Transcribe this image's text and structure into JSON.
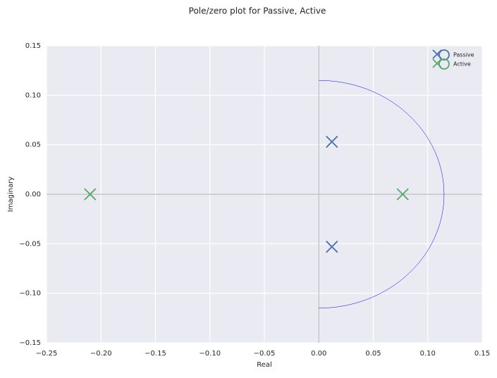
{
  "chart_data": {
    "type": "pole-zero",
    "title": "Pole/zero plot for Passive, Active",
    "x_label": "Real",
    "y_label": "Imaginary",
    "xlim": [
      -0.25,
      0.15
    ],
    "ylim": [
      -0.15,
      0.15
    ],
    "xticks": [
      {
        "value": -0.25,
        "label": "−0.25"
      },
      {
        "value": -0.2,
        "label": "−0.20"
      },
      {
        "value": -0.15,
        "label": "−0.15"
      },
      {
        "value": -0.1,
        "label": "−0.10"
      },
      {
        "value": -0.05,
        "label": "−0.05"
      },
      {
        "value": 0,
        "label": "0.00"
      },
      0.05,
      {
        "value": 0.1,
        "label": "0.10"
      },
      0.15
    ],
    "yticks": [
      {
        "value": -0.15,
        "label": "−0.15"
      },
      {
        "value": -0.1,
        "label": "−0.10"
      },
      {
        "value": -0.05,
        "label": "−0.05"
      },
      {
        "value": 0,
        "label": "0.00"
      },
      0.05,
      {
        "value": 0.1,
        "label": "0.10"
      },
      0.15
    ],
    "grid": true,
    "legend": "upper right",
    "reference_arc": {
      "radius": 0.115,
      "color": "#0000ff"
    },
    "series": [
      {
        "name": "Passive",
        "color": "#4c72b0",
        "x": [
          0.012,
          0.012
        ],
        "values": [
          0.053,
          -0.053
        ]
      },
      {
        "name": "Active",
        "color": "#55a868",
        "x": [
          -0.21,
          0.077
        ],
        "values": [
          0,
          0
        ]
      }
    ]
  }
}
